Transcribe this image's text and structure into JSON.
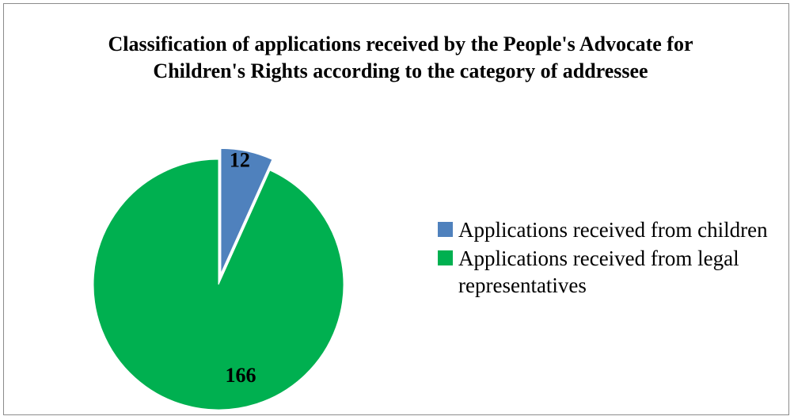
{
  "chart_data": {
    "type": "pie",
    "title": "Classification of applications received by the People's Advocate for Children's Rights according to the category of addressee",
    "slices": [
      {
        "label": "Applications received from children",
        "value": 12,
        "color": "#4f81bd",
        "exploded": true
      },
      {
        "label": "Applications received from legal representatives",
        "value": 166,
        "color": "#00b050",
        "exploded": false
      }
    ],
    "legend_position": "right",
    "data_labels": [
      "12",
      "166"
    ]
  }
}
